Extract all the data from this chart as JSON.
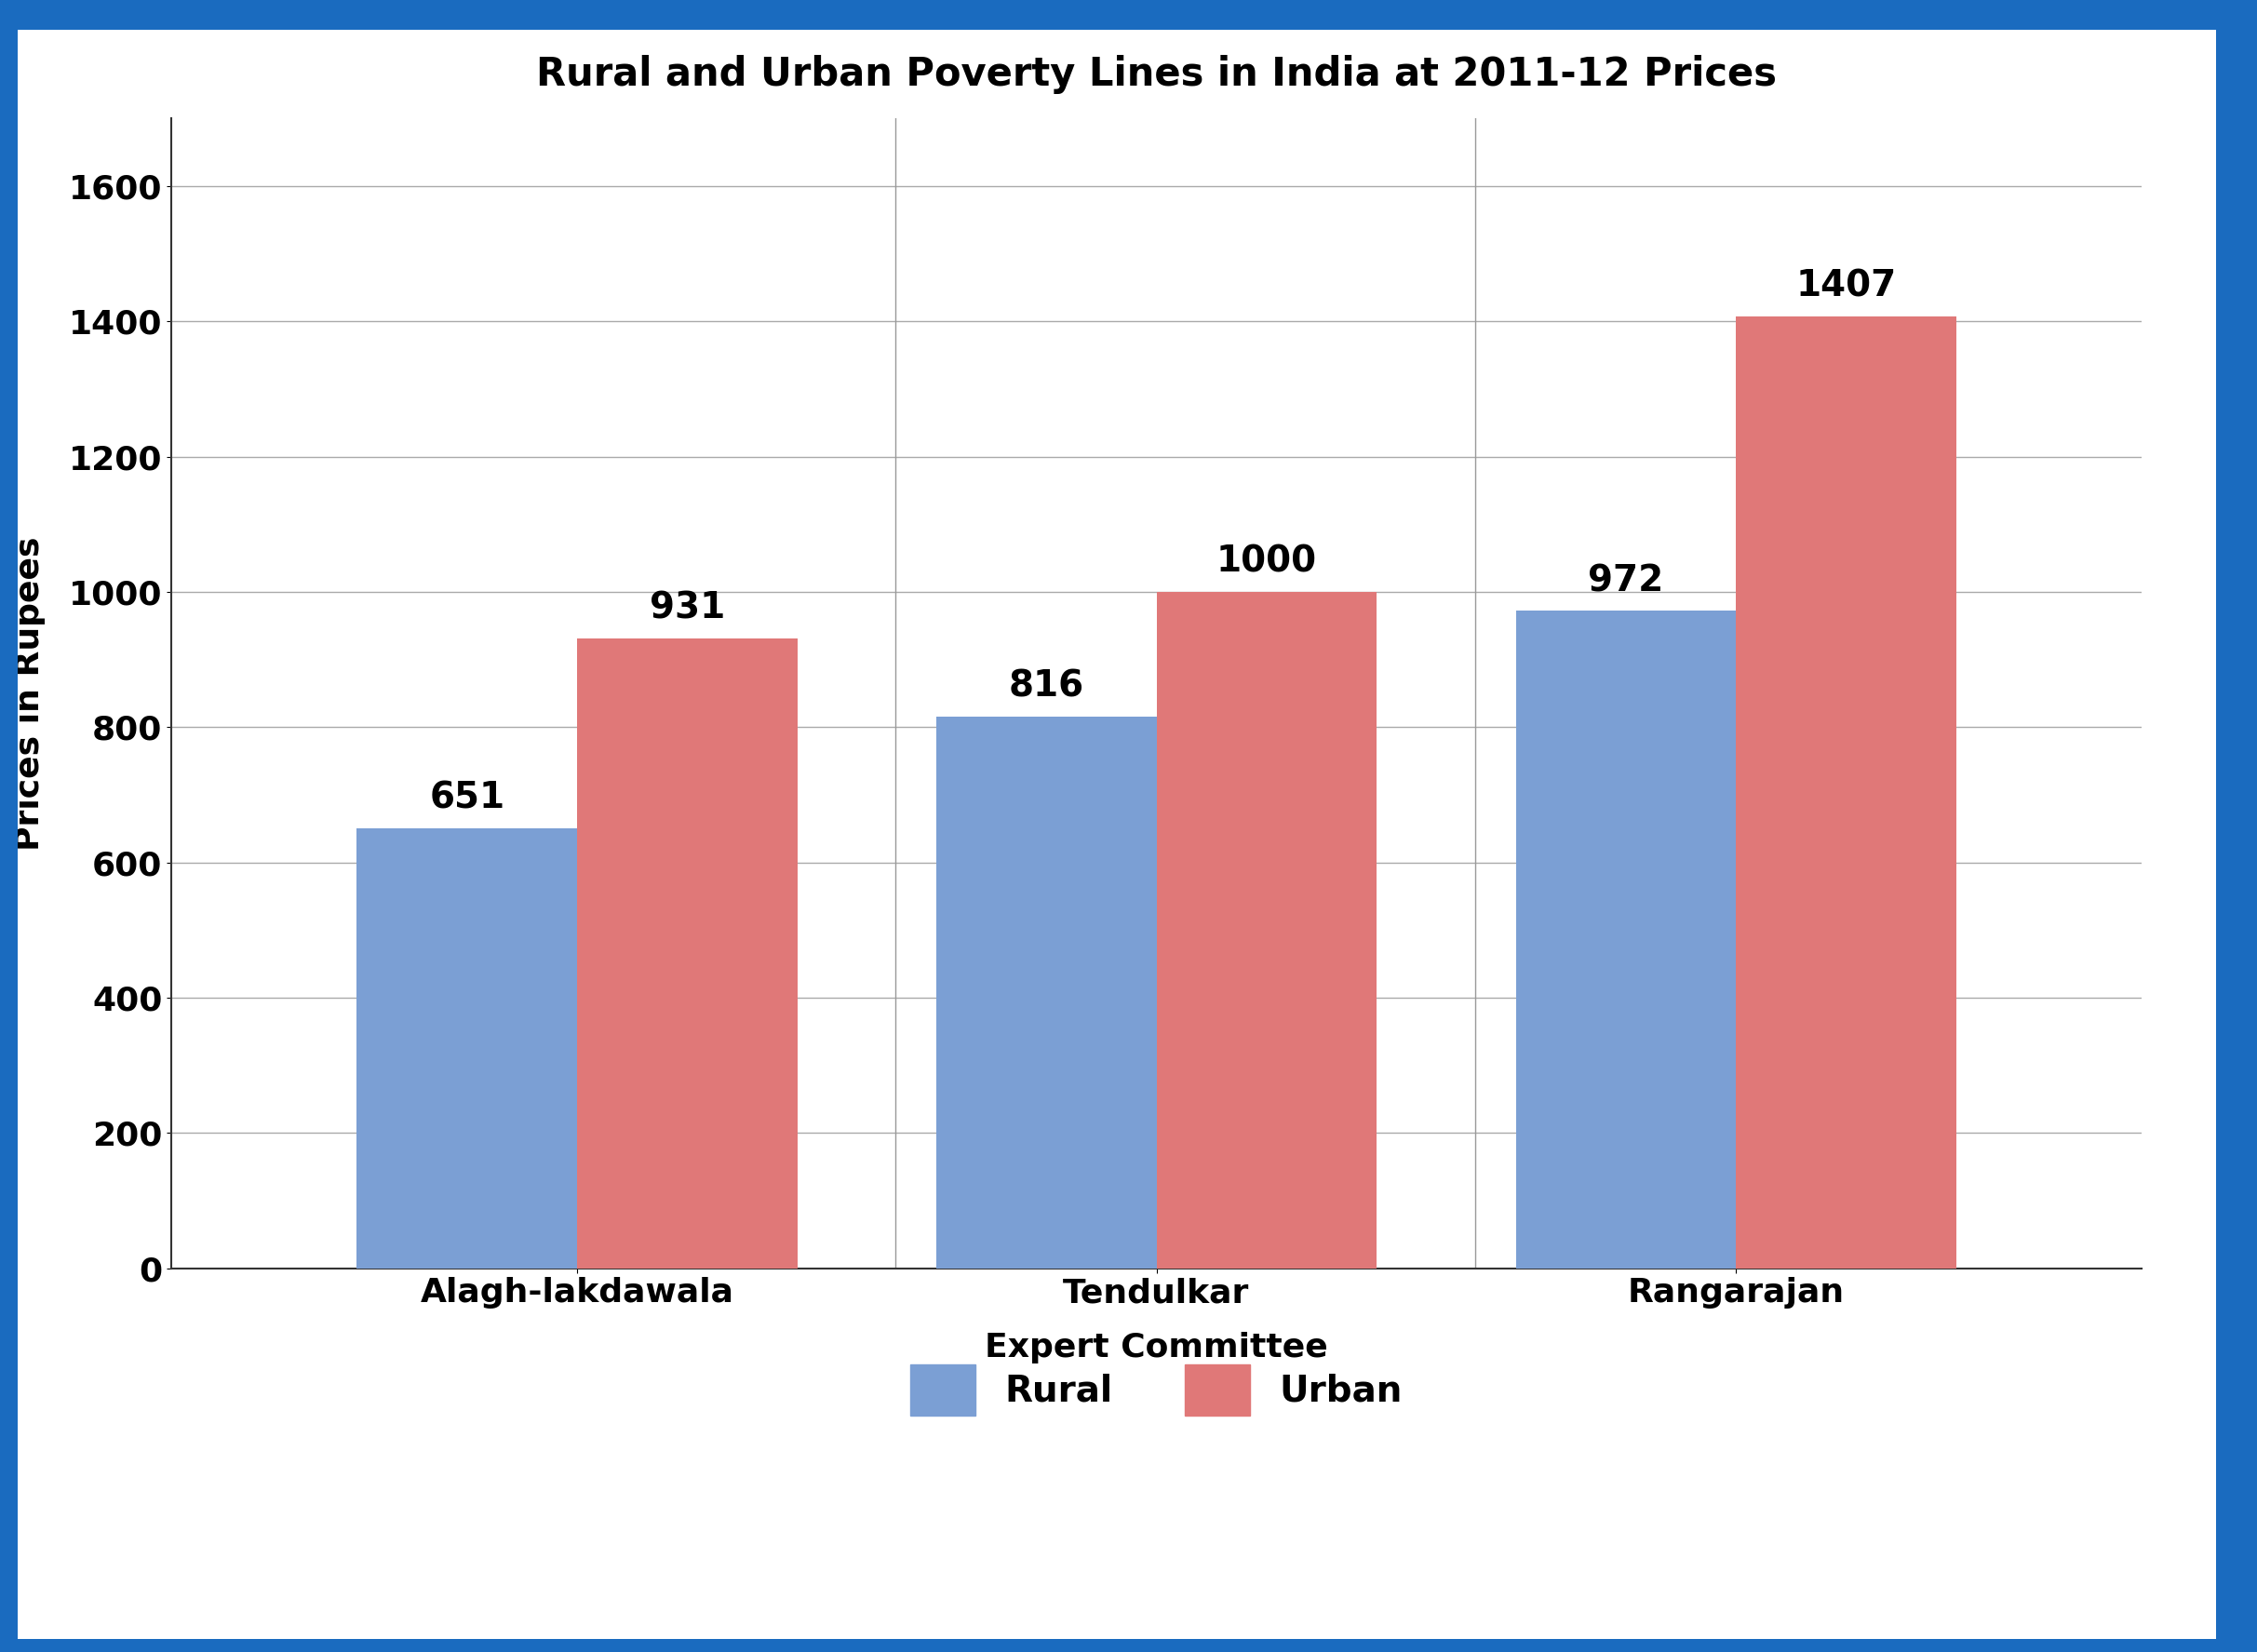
{
  "title": "Rural and Urban Poverty Lines in India at 2011-12 Prices",
  "categories": [
    "Alagh-lakdawala",
    "Tendulkar",
    "Rangarajan"
  ],
  "rural_values": [
    651,
    816,
    972
  ],
  "urban_values": [
    931,
    1000,
    1407
  ],
  "rural_color": "#7B9FD4",
  "urban_color": "#E07878",
  "xlabel": "Expert Committee",
  "ylabel": "Prices in Rupees",
  "ylim": [
    0,
    1700
  ],
  "yticks": [
    0,
    200,
    400,
    600,
    800,
    1000,
    1200,
    1400,
    1600
  ],
  "bar_width": 0.38,
  "title_fontsize": 30,
  "label_fontsize": 26,
  "tick_fontsize": 26,
  "annotation_fontsize": 28,
  "legend_fontsize": 28,
  "background_color": "#ffffff",
  "border_color": "#1a6bbf",
  "grid_color": "#aaaaaa",
  "top_bar_height": 0.018,
  "right_bar_width": 0.018
}
